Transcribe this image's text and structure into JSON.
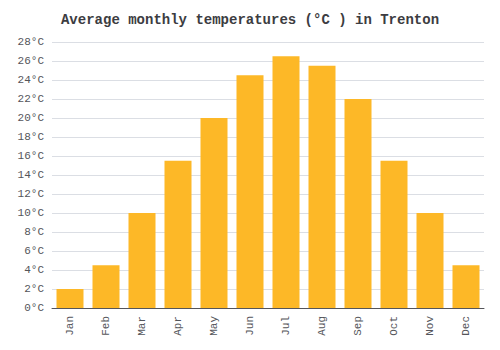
{
  "chart_data": {
    "type": "bar",
    "title": "Average monthly temperatures (°C ) in Trenton",
    "categories": [
      "Jan",
      "Feb",
      "Mar",
      "Apr",
      "May",
      "Jun",
      "Jul",
      "Aug",
      "Sep",
      "Oct",
      "Nov",
      "Dec"
    ],
    "values": [
      2.0,
      4.5,
      10.0,
      15.5,
      20.0,
      24.5,
      26.5,
      25.5,
      22.0,
      15.5,
      10.0,
      4.5
    ],
    "color": "#FDB827",
    "ylim": [
      0,
      28
    ],
    "yticks": [
      {
        "value": 0,
        "label": "0°C"
      },
      {
        "value": 2,
        "label": "2°C"
      },
      {
        "value": 4,
        "label": "4°C"
      },
      {
        "value": 6,
        "label": "6°C"
      },
      {
        "value": 8,
        "label": "8°C"
      },
      {
        "value": 10,
        "label": "10°C"
      },
      {
        "value": 12,
        "label": "12°C"
      },
      {
        "value": 14,
        "label": "14°C"
      },
      {
        "value": 16,
        "label": "16°C"
      },
      {
        "value": 18,
        "label": "18°C"
      },
      {
        "value": 20,
        "label": "20°C"
      },
      {
        "value": 22,
        "label": "22°C"
      },
      {
        "value": 24,
        "label": "24°C"
      },
      {
        "value": 26,
        "label": "26°C"
      },
      {
        "value": 28,
        "label": "28°C"
      }
    ],
    "grid": true
  }
}
